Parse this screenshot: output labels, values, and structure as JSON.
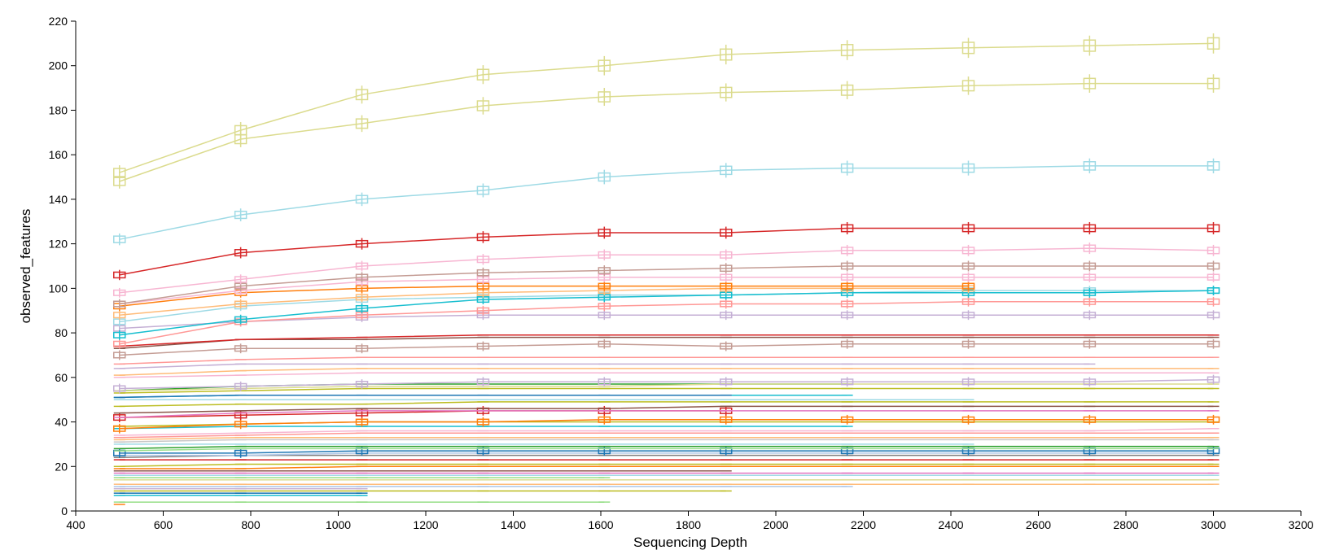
{
  "chart_data": {
    "type": "line",
    "xlabel": "Sequencing Depth",
    "ylabel": "observed_features",
    "xlim": [
      400,
      3200
    ],
    "ylim": [
      0,
      220
    ],
    "xticks": [
      "400",
      "600",
      "800",
      "1000",
      "1200",
      "1400",
      "1600",
      "1800",
      "2000",
      "2200",
      "2400",
      "2600",
      "2800",
      "3000",
      "3200"
    ],
    "yticks": [
      "0",
      "20",
      "40",
      "60",
      "80",
      "100",
      "120",
      "140",
      "160",
      "180",
      "200",
      "220"
    ],
    "grid": false,
    "legend": "none",
    "depths": [
      500,
      777,
      1054,
      1331,
      1608,
      1886,
      2163,
      2440,
      2717,
      3000
    ],
    "series": [
      {
        "color": "#dbdb8d",
        "values": [
          152,
          171,
          187,
          196,
          200,
          205,
          207,
          208,
          209,
          210
        ],
        "boxes": true
      },
      {
        "color": "#dbdb8d",
        "values": [
          148,
          167,
          174,
          182,
          186,
          188,
          189,
          191,
          192,
          192
        ],
        "boxes": true
      },
      {
        "color": "#9edae5",
        "values": [
          122,
          133,
          140,
          144,
          150,
          153,
          154,
          154,
          155,
          155
        ],
        "boxes": true
      },
      {
        "color": "#d62728",
        "values": [
          106,
          116,
          120,
          123,
          125,
          125,
          127,
          127,
          127,
          127
        ],
        "boxes": true
      },
      {
        "color": "#f7b6d2",
        "values": [
          98,
          104,
          110,
          113,
          115,
          115,
          117,
          117,
          118,
          117
        ],
        "boxes": true
      },
      {
        "color": "#c49c94",
        "values": [
          93,
          101,
          105,
          107,
          108,
          109,
          110,
          110,
          110,
          110
        ],
        "boxes": true
      },
      {
        "color": "#f7b6d2",
        "values": [
          93,
          99,
          103,
          104,
          105,
          105,
          105,
          105,
          105,
          105
        ],
        "boxes": true
      },
      {
        "color": "#ff7f0e",
        "values": [
          92,
          98,
          100,
          101,
          101,
          101,
          101,
          101
        ],
        "boxes": true
      },
      {
        "color": "#ffbb78",
        "values": [
          88,
          93,
          96,
          98,
          99,
          100,
          100,
          100
        ],
        "boxes": true
      },
      {
        "color": "#17becf",
        "values": [
          79,
          86,
          91,
          95,
          96,
          97,
          98,
          98,
          98,
          99
        ],
        "boxes": true
      },
      {
        "color": "#9edae5",
        "values": [
          85,
          92,
          95,
          96,
          97,
          97,
          98,
          99,
          99,
          99
        ],
        "boxes": true
      },
      {
        "color": "#ff9896",
        "values": [
          75,
          85,
          88,
          90,
          92,
          93,
          93,
          94,
          94,
          94
        ],
        "boxes": true
      },
      {
        "color": "#c5b0d5",
        "values": [
          82,
          85,
          87,
          88,
          88,
          88,
          88,
          88,
          88,
          88
        ],
        "boxes": true
      },
      {
        "color": "#d62728",
        "values": [
          74,
          77,
          78,
          79,
          79,
          79,
          79,
          79,
          79,
          79
        ],
        "boxes": false
      },
      {
        "color": "#8c564b",
        "values": [
          73,
          77,
          77,
          78,
          78,
          78,
          78,
          78,
          78,
          78
        ],
        "boxes": false
      },
      {
        "color": "#c49c94",
        "values": [
          70,
          73,
          73,
          74,
          75,
          74,
          75,
          75,
          75,
          75
        ],
        "boxes": true
      },
      {
        "color": "#ff9896",
        "values": [
          66,
          68,
          69,
          69,
          69,
          69,
          69,
          69,
          69,
          69
        ],
        "boxes": false
      },
      {
        "color": "#c5b0d5",
        "values": [
          64,
          66,
          66,
          66,
          66,
          66,
          66,
          66,
          66
        ],
        "boxes": false
      },
      {
        "color": "#ffbb78",
        "values": [
          61,
          63,
          64,
          64,
          64,
          64,
          64,
          64,
          64,
          64
        ],
        "boxes": false
      },
      {
        "color": "#f7b6d2",
        "values": [
          60,
          61,
          62,
          62,
          62,
          62,
          62,
          62,
          62,
          62
        ],
        "boxes": false
      },
      {
        "color": "#c5b0d5",
        "values": [
          55,
          56,
          57,
          58,
          58,
          58,
          58,
          58,
          58,
          59
        ],
        "boxes": true
      },
      {
        "color": "#dbdb8d",
        "values": [
          54,
          55,
          56,
          56,
          56,
          57,
          57,
          57,
          57,
          57
        ],
        "boxes": false
      },
      {
        "color": "#2ca02c",
        "values": [
          54,
          56,
          57,
          57,
          57,
          57,
          57
        ],
        "boxes": false
      },
      {
        "color": "#bcbd22",
        "values": [
          53,
          54,
          55,
          55,
          55,
          55,
          55,
          55,
          55,
          55
        ],
        "boxes": false
      },
      {
        "color": "#1f77b4",
        "values": [
          51,
          52,
          52,
          52,
          52,
          52
        ],
        "boxes": false
      },
      {
        "color": "#17becf",
        "values": [
          51,
          52,
          52,
          52,
          52,
          52,
          52
        ],
        "boxes": false
      },
      {
        "color": "#9edae5",
        "values": [
          50,
          50,
          50,
          50,
          50,
          50,
          50,
          50
        ],
        "boxes": false
      },
      {
        "color": "#bcbd22",
        "values": [
          47,
          48,
          48,
          49,
          49,
          49,
          49,
          49,
          49,
          49
        ],
        "boxes": false
      },
      {
        "color": "#8c564b",
        "values": [
          44,
          45,
          46,
          46,
          46,
          47,
          47,
          47,
          47,
          47
        ],
        "boxes": false
      },
      {
        "color": "#e377c2",
        "values": [
          42,
          44,
          45,
          45,
          45,
          45,
          45,
          45,
          45,
          45
        ],
        "boxes": false
      },
      {
        "color": "#d62728",
        "values": [
          42,
          43,
          44,
          45,
          45,
          45
        ],
        "boxes": true
      },
      {
        "color": "#ff7f0e",
        "values": [
          37,
          39,
          40,
          40,
          41,
          41,
          41,
          41,
          41,
          41
        ],
        "boxes": true
      },
      {
        "color": "#bcbd22",
        "values": [
          38,
          39,
          40,
          40,
          40,
          40,
          40,
          40,
          40,
          40
        ],
        "boxes": false
      },
      {
        "color": "#17becf",
        "values": [
          37,
          38,
          38,
          38,
          38,
          38,
          38
        ],
        "boxes": false
      },
      {
        "color": "#f7b6d2",
        "values": [
          34,
          35,
          36,
          36,
          36,
          36,
          36,
          36,
          36,
          37
        ],
        "boxes": false
      },
      {
        "color": "#ff9896",
        "values": [
          33,
          34,
          35,
          35,
          35,
          35,
          35,
          35,
          35,
          35
        ],
        "boxes": false
      },
      {
        "color": "#ffbb78",
        "values": [
          32,
          33,
          33,
          33,
          33,
          33,
          33,
          33,
          33,
          33
        ],
        "boxes": false
      },
      {
        "color": "#c7c7c7",
        "values": [
          31,
          32,
          32,
          32,
          32,
          32,
          32,
          32,
          32,
          32
        ],
        "boxes": false
      },
      {
        "color": "#9edae5",
        "values": [
          30,
          30,
          30,
          30,
          30,
          30,
          30,
          30
        ],
        "boxes": false
      },
      {
        "color": "#2ca02c",
        "values": [
          28,
          29,
          29,
          29,
          29,
          29,
          29,
          29,
          29,
          29
        ],
        "boxes": false
      },
      {
        "color": "#98df8a",
        "values": [
          27,
          28,
          28,
          28,
          28,
          28,
          28,
          28,
          28,
          28
        ],
        "boxes": false
      },
      {
        "color": "#1f77b4",
        "values": [
          26,
          26,
          27,
          27,
          27,
          27,
          27,
          27,
          27,
          27
        ],
        "boxes": true
      },
      {
        "color": "#aec7e8",
        "values": [
          25,
          25,
          26,
          26,
          26,
          26,
          26,
          26,
          26,
          26
        ],
        "boxes": false
      },
      {
        "color": "#7f7f7f",
        "values": [
          24,
          25,
          25,
          25,
          25,
          25,
          25,
          25,
          25,
          25
        ],
        "boxes": false
      },
      {
        "color": "#d62728",
        "values": [
          23,
          23,
          23,
          23,
          23,
          23,
          23,
          23,
          23,
          23
        ],
        "boxes": false
      },
      {
        "color": "#bcbd22",
        "values": [
          20,
          21,
          21,
          21,
          21,
          21,
          21,
          21,
          21,
          21
        ],
        "boxes": false
      },
      {
        "color": "#ff7f0e",
        "values": [
          19,
          19,
          20,
          20,
          20,
          20,
          20,
          20,
          20,
          20
        ],
        "boxes": false
      },
      {
        "color": "#8c564b",
        "values": [
          18,
          18,
          18,
          18,
          18,
          18
        ],
        "boxes": false
      },
      {
        "color": "#e377c2",
        "values": [
          17,
          17,
          17,
          17,
          17,
          17,
          17,
          17,
          17,
          17
        ],
        "boxes": false
      },
      {
        "color": "#9edae5",
        "values": [
          16,
          16,
          16,
          16,
          16,
          16,
          16,
          16,
          16,
          16
        ],
        "boxes": false
      },
      {
        "color": "#98df8a",
        "values": [
          15,
          15,
          15,
          15,
          15
        ],
        "boxes": false
      },
      {
        "color": "#dbdb8d",
        "values": [
          14,
          14,
          14,
          14,
          14,
          14,
          14,
          14,
          14,
          14
        ],
        "boxes": false
      },
      {
        "color": "#ffbb78",
        "values": [
          12,
          12,
          12,
          12,
          12,
          12,
          12,
          12,
          12,
          12
        ],
        "boxes": false
      },
      {
        "color": "#aec7e8",
        "values": [
          11,
          11,
          11,
          11,
          11,
          11,
          11
        ],
        "boxes": false
      },
      {
        "color": "#c5b0d5",
        "values": [
          10,
          10,
          10
        ],
        "boxes": false
      },
      {
        "color": "#bcbd22",
        "values": [
          9,
          9,
          9,
          9,
          9,
          9
        ],
        "boxes": false
      },
      {
        "color": "#1f77b4",
        "values": [
          8,
          8,
          8
        ],
        "boxes": false
      },
      {
        "color": "#17becf",
        "values": [
          7,
          7,
          7
        ],
        "boxes": false
      },
      {
        "color": "#98df8a",
        "values": [
          4,
          4,
          4,
          4,
          4
        ],
        "boxes": false
      },
      {
        "color": "#ff7f0e",
        "values": [
          3
        ],
        "boxes": false
      }
    ]
  }
}
